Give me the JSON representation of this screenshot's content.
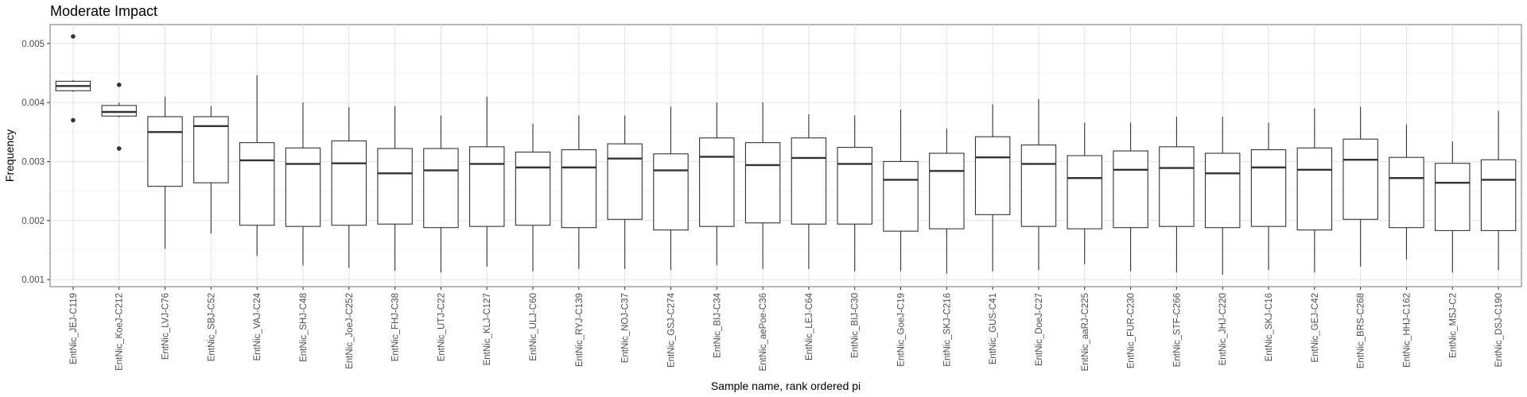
{
  "chart_data": {
    "type": "boxplot",
    "title": "Moderate Impact",
    "xlabel": "Sample name, rank ordered pi",
    "ylabel": "Frequency",
    "ylim": [
      0.00088,
      0.00532
    ],
    "yticks": [
      0.001,
      0.002,
      0.003,
      0.004,
      0.005
    ],
    "ytick_labels": [
      "0.001",
      "0.002",
      "0.003",
      "0.004",
      "0.005"
    ],
    "grid": true,
    "categories": [
      "EntNic_JEJ-C119",
      "EntNic_KoeJ-C212",
      "EntNic_LVJ-C76",
      "EntNic_SBJ-C52",
      "EntNic_VAJ-C24",
      "EntNic_SHJ-C48",
      "EntNic_JoeJ-C252",
      "EntNic_FHJ-C38",
      "EntNic_UTJ-C22",
      "EntNic_KLJ-C127",
      "EntNic_ULJ-C60",
      "EntNic_RYJ-C139",
      "EntNic_NOJ-C37",
      "EntNic_GSJ-C274",
      "EntNic_BIJ-C34",
      "EntNic_aePoe-C36",
      "EntNic_LEJ-C64",
      "EntNic_BIJ-C30",
      "EntNic_GoeJ-C19",
      "EntNic_SKJ-C216",
      "EntNic_GUS-C41",
      "EntNic_DoeJ-C27",
      "EntNic_aaRJ-C225",
      "EntNic_FUR-C230",
      "EntNic_STF-C266",
      "EntNic_JHJ-C220",
      "EntNic_SKJ-C16",
      "EntNic_GEJ-C42",
      "EntNic_BRS-C268",
      "EntNic_HHJ-C162",
      "EntNic_MSJ-C2",
      "EntNic_DSJ-C190"
    ],
    "boxes": [
      {
        "min": 0.00418,
        "q1": 0.0042,
        "median": 0.00428,
        "q3": 0.00436,
        "max": 0.00438,
        "outliers": [
          0.00512,
          0.0037
        ]
      },
      {
        "min": 0.00375,
        "q1": 0.00377,
        "median": 0.00384,
        "q3": 0.00395,
        "max": 0.004,
        "outliers": [
          0.0043,
          0.00322
        ]
      },
      {
        "min": 0.00152,
        "q1": 0.00258,
        "median": 0.0035,
        "q3": 0.00376,
        "max": 0.0041,
        "outliers": []
      },
      {
        "min": 0.00178,
        "q1": 0.00264,
        "median": 0.0036,
        "q3": 0.00376,
        "max": 0.00394,
        "outliers": []
      },
      {
        "min": 0.0014,
        "q1": 0.00192,
        "median": 0.00302,
        "q3": 0.00332,
        "max": 0.00446,
        "outliers": []
      },
      {
        "min": 0.00124,
        "q1": 0.0019,
        "median": 0.00296,
        "q3": 0.00323,
        "max": 0.004,
        "outliers": []
      },
      {
        "min": 0.0012,
        "q1": 0.00192,
        "median": 0.00297,
        "q3": 0.00335,
        "max": 0.00392,
        "outliers": []
      },
      {
        "min": 0.00115,
        "q1": 0.00194,
        "median": 0.0028,
        "q3": 0.00322,
        "max": 0.00394,
        "outliers": []
      },
      {
        "min": 0.00112,
        "q1": 0.00188,
        "median": 0.00285,
        "q3": 0.00322,
        "max": 0.00378,
        "outliers": []
      },
      {
        "min": 0.00122,
        "q1": 0.0019,
        "median": 0.00296,
        "q3": 0.00325,
        "max": 0.0041,
        "outliers": []
      },
      {
        "min": 0.00114,
        "q1": 0.00192,
        "median": 0.0029,
        "q3": 0.00316,
        "max": 0.00364,
        "outliers": []
      },
      {
        "min": 0.00118,
        "q1": 0.00188,
        "median": 0.0029,
        "q3": 0.0032,
        "max": 0.00378,
        "outliers": []
      },
      {
        "min": 0.00118,
        "q1": 0.00202,
        "median": 0.00305,
        "q3": 0.0033,
        "max": 0.00378,
        "outliers": []
      },
      {
        "min": 0.00116,
        "q1": 0.00184,
        "median": 0.00285,
        "q3": 0.00313,
        "max": 0.00393,
        "outliers": []
      },
      {
        "min": 0.00124,
        "q1": 0.0019,
        "median": 0.00308,
        "q3": 0.0034,
        "max": 0.004,
        "outliers": []
      },
      {
        "min": 0.00118,
        "q1": 0.00196,
        "median": 0.00294,
        "q3": 0.00332,
        "max": 0.004,
        "outliers": []
      },
      {
        "min": 0.00118,
        "q1": 0.00194,
        "median": 0.00306,
        "q3": 0.0034,
        "max": 0.0038,
        "outliers": []
      },
      {
        "min": 0.00114,
        "q1": 0.00194,
        "median": 0.00296,
        "q3": 0.00324,
        "max": 0.00378,
        "outliers": []
      },
      {
        "min": 0.00114,
        "q1": 0.00182,
        "median": 0.00269,
        "q3": 0.003,
        "max": 0.00388,
        "outliers": []
      },
      {
        "min": 0.0011,
        "q1": 0.00186,
        "median": 0.00284,
        "q3": 0.00314,
        "max": 0.00356,
        "outliers": []
      },
      {
        "min": 0.00114,
        "q1": 0.0021,
        "median": 0.00307,
        "q3": 0.00342,
        "max": 0.00397,
        "outliers": []
      },
      {
        "min": 0.00116,
        "q1": 0.0019,
        "median": 0.00296,
        "q3": 0.00328,
        "max": 0.00406,
        "outliers": []
      },
      {
        "min": 0.00126,
        "q1": 0.00186,
        "median": 0.00272,
        "q3": 0.0031,
        "max": 0.00366,
        "outliers": []
      },
      {
        "min": 0.00114,
        "q1": 0.00188,
        "median": 0.00286,
        "q3": 0.00318,
        "max": 0.00366,
        "outliers": []
      },
      {
        "min": 0.00112,
        "q1": 0.0019,
        "median": 0.00289,
        "q3": 0.00325,
        "max": 0.00376,
        "outliers": []
      },
      {
        "min": 0.00108,
        "q1": 0.00188,
        "median": 0.0028,
        "q3": 0.00314,
        "max": 0.00376,
        "outliers": []
      },
      {
        "min": 0.00116,
        "q1": 0.0019,
        "median": 0.0029,
        "q3": 0.0032,
        "max": 0.00366,
        "outliers": []
      },
      {
        "min": 0.00112,
        "q1": 0.00184,
        "median": 0.00286,
        "q3": 0.00323,
        "max": 0.0039,
        "outliers": []
      },
      {
        "min": 0.00122,
        "q1": 0.00202,
        "median": 0.00303,
        "q3": 0.00338,
        "max": 0.00393,
        "outliers": []
      },
      {
        "min": 0.00134,
        "q1": 0.00188,
        "median": 0.00272,
        "q3": 0.00307,
        "max": 0.00363,
        "outliers": []
      },
      {
        "min": 0.00112,
        "q1": 0.00183,
        "median": 0.00264,
        "q3": 0.00297,
        "max": 0.00334,
        "outliers": []
      },
      {
        "min": 0.00116,
        "q1": 0.00183,
        "median": 0.00269,
        "q3": 0.00303,
        "max": 0.00386,
        "outliers": []
      }
    ]
  }
}
